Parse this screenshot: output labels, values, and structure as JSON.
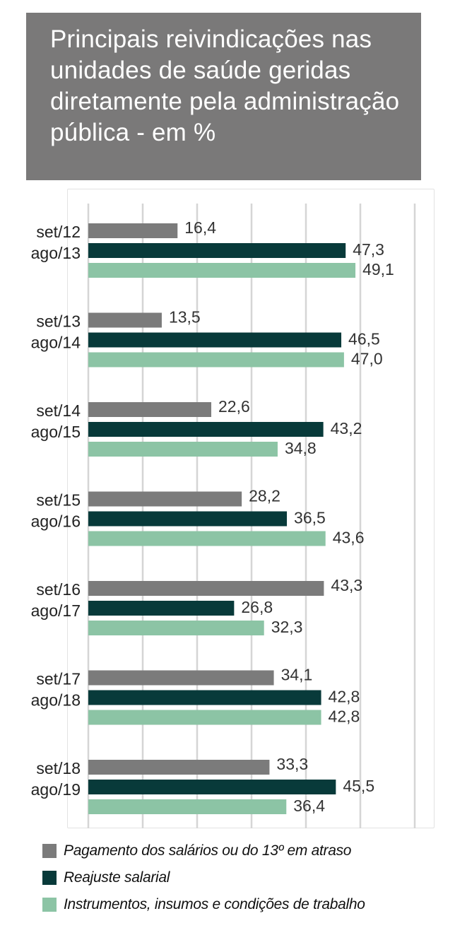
{
  "title": "Principais reivindicações nas unidades de saúde geridas diretamente pela administração pública - em %",
  "title_lines": [
    "Principais reivindicações nas",
    "unidades de saúde geridas",
    "diretamente pela administração",
    "pública - em %"
  ],
  "colors": {
    "title_bg": "#7a7979",
    "series": [
      "#7b7b7b",
      "#083a3a",
      "#8cc4a5"
    ]
  },
  "chart_data": {
    "type": "bar",
    "orientation": "horizontal",
    "categories": [
      [
        "set/12",
        "ago/13"
      ],
      [
        "set/13",
        "ago/14"
      ],
      [
        "set/14",
        "ago/15"
      ],
      [
        "set/15",
        "ago/16"
      ],
      [
        "set/16",
        "ago/17"
      ],
      [
        "set/17",
        "ago/18"
      ],
      [
        "set/18",
        "ago/19"
      ]
    ],
    "series": [
      {
        "name": "Pagamento dos salários ou do 13º em atraso",
        "values": [
          16.4,
          13.5,
          22.6,
          28.2,
          43.3,
          34.1,
          33.3
        ],
        "labels": [
          "16,4",
          "13,5",
          "22,6",
          "28,2",
          "43,3",
          "34,1",
          "33,3"
        ]
      },
      {
        "name": "Reajuste salarial",
        "values": [
          47.3,
          46.5,
          43.2,
          36.5,
          26.8,
          42.8,
          45.5
        ],
        "labels": [
          "47,3",
          "46,5",
          "43,2",
          "36,5",
          "26,8",
          "42,8",
          "45,5"
        ]
      },
      {
        "name": "Instrumentos, insumos e condições de trabalho",
        "values": [
          49.1,
          47.0,
          34.8,
          43.6,
          32.3,
          42.8,
          36.4
        ],
        "labels": [
          "49,1",
          "47,0",
          "34,8",
          "43,6",
          "32,3",
          "42,8",
          "36,4"
        ]
      }
    ],
    "xlim": [
      0,
      60
    ],
    "grid": true,
    "legend_position": "bottom",
    "xlabel": "",
    "ylabel": ""
  }
}
